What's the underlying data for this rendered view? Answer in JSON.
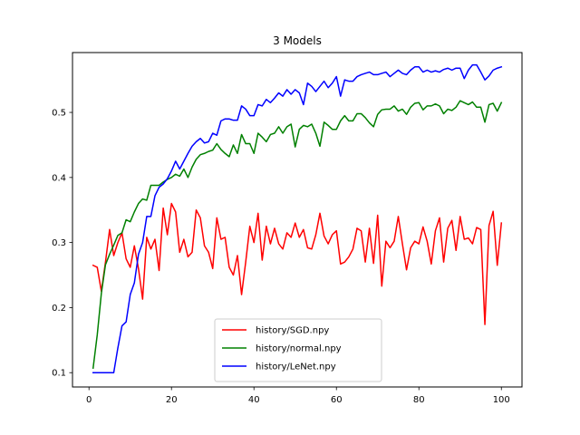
{
  "chart_data": {
    "type": "line",
    "title": "3 Models",
    "xlabel": "",
    "ylabel": "",
    "xlim": [
      -4,
      105
    ],
    "ylim": [
      0.078,
      0.592
    ],
    "xticks": [
      0,
      20,
      40,
      60,
      80,
      100
    ],
    "yticks": [
      0.1,
      0.2,
      0.3,
      0.4,
      0.5
    ],
    "xtick_labels": [
      "0",
      "20",
      "40",
      "60",
      "80",
      "100"
    ],
    "ytick_labels": [
      "0.1",
      "0.2",
      "0.3",
      "0.4",
      "0.5"
    ],
    "grid": false,
    "legend_position": "bottom-center",
    "x": [
      1,
      2,
      3,
      4,
      5,
      6,
      7,
      8,
      9,
      10,
      11,
      12,
      13,
      14,
      15,
      16,
      17,
      18,
      19,
      20,
      21,
      22,
      23,
      24,
      25,
      26,
      27,
      28,
      29,
      30,
      31,
      32,
      33,
      34,
      35,
      36,
      37,
      38,
      39,
      40,
      41,
      42,
      43,
      44,
      45,
      46,
      47,
      48,
      49,
      50,
      51,
      52,
      53,
      54,
      55,
      56,
      57,
      58,
      59,
      60,
      61,
      62,
      63,
      64,
      65,
      66,
      67,
      68,
      69,
      70,
      71,
      72,
      73,
      74,
      75,
      76,
      77,
      78,
      79,
      80,
      81,
      82,
      83,
      84,
      85,
      86,
      87,
      88,
      89,
      90,
      91,
      92,
      93,
      94,
      95,
      96,
      97,
      98,
      99,
      100
    ],
    "series": [
      {
        "name": "history/SGD.npy",
        "color": "#ff0000",
        "values": [
          0.265,
          0.262,
          0.225,
          0.27,
          0.32,
          0.28,
          0.3,
          0.315,
          0.275,
          0.262,
          0.295,
          0.26,
          0.213,
          0.308,
          0.29,
          0.305,
          0.257,
          0.353,
          0.312,
          0.36,
          0.347,
          0.285,
          0.305,
          0.278,
          0.285,
          0.35,
          0.338,
          0.295,
          0.285,
          0.26,
          0.338,
          0.305,
          0.308,
          0.262,
          0.25,
          0.28,
          0.22,
          0.27,
          0.325,
          0.3,
          0.345,
          0.273,
          0.325,
          0.298,
          0.322,
          0.298,
          0.29,
          0.315,
          0.308,
          0.33,
          0.308,
          0.32,
          0.292,
          0.29,
          0.312,
          0.345,
          0.31,
          0.298,
          0.312,
          0.318,
          0.267,
          0.27,
          0.278,
          0.29,
          0.322,
          0.318,
          0.27,
          0.322,
          0.268,
          0.342,
          0.233,
          0.302,
          0.292,
          0.302,
          0.34,
          0.298,
          0.258,
          0.292,
          0.302,
          0.298,
          0.324,
          0.302,
          0.267,
          0.318,
          0.338,
          0.27,
          0.322,
          0.334,
          0.288,
          0.34,
          0.305,
          0.307,
          0.298,
          0.323,
          0.32,
          0.174,
          0.326,
          0.348,
          0.265,
          0.33
        ]
      },
      {
        "name": "history/normal.npy",
        "color": "#008000",
        "values": [
          0.107,
          0.158,
          0.222,
          0.266,
          0.282,
          0.296,
          0.311,
          0.315,
          0.335,
          0.332,
          0.347,
          0.36,
          0.367,
          0.365,
          0.388,
          0.388,
          0.388,
          0.393,
          0.397,
          0.4,
          0.405,
          0.402,
          0.413,
          0.4,
          0.416,
          0.428,
          0.435,
          0.437,
          0.44,
          0.442,
          0.452,
          0.443,
          0.437,
          0.432,
          0.45,
          0.437,
          0.466,
          0.452,
          0.452,
          0.437,
          0.468,
          0.462,
          0.455,
          0.466,
          0.468,
          0.478,
          0.468,
          0.478,
          0.482,
          0.447,
          0.474,
          0.48,
          0.478,
          0.482,
          0.468,
          0.448,
          0.485,
          0.48,
          0.474,
          0.474,
          0.487,
          0.495,
          0.487,
          0.487,
          0.498,
          0.498,
          0.492,
          0.484,
          0.478,
          0.497,
          0.504,
          0.505,
          0.505,
          0.51,
          0.502,
          0.505,
          0.497,
          0.508,
          0.514,
          0.515,
          0.504,
          0.51,
          0.51,
          0.513,
          0.51,
          0.498,
          0.505,
          0.503,
          0.508,
          0.518,
          0.515,
          0.512,
          0.516,
          0.508,
          0.508,
          0.485,
          0.512,
          0.514,
          0.502,
          0.515
        ]
      },
      {
        "name": "history/LeNet.npy",
        "color": "#0000ff",
        "values": [
          0.1,
          0.1,
          0.1,
          0.1,
          0.1,
          0.1,
          0.138,
          0.172,
          0.178,
          0.22,
          0.238,
          0.282,
          0.3,
          0.34,
          0.34,
          0.372,
          0.385,
          0.39,
          0.398,
          0.41,
          0.425,
          0.413,
          0.425,
          0.437,
          0.448,
          0.455,
          0.46,
          0.453,
          0.455,
          0.468,
          0.465,
          0.487,
          0.49,
          0.49,
          0.488,
          0.488,
          0.51,
          0.505,
          0.495,
          0.495,
          0.512,
          0.51,
          0.52,
          0.515,
          0.522,
          0.53,
          0.525,
          0.535,
          0.528,
          0.535,
          0.53,
          0.512,
          0.545,
          0.54,
          0.532,
          0.54,
          0.548,
          0.538,
          0.545,
          0.555,
          0.525,
          0.55,
          0.548,
          0.548,
          0.555,
          0.558,
          0.56,
          0.562,
          0.558,
          0.558,
          0.56,
          0.562,
          0.555,
          0.56,
          0.565,
          0.56,
          0.558,
          0.565,
          0.57,
          0.57,
          0.562,
          0.565,
          0.562,
          0.564,
          0.562,
          0.566,
          0.568,
          0.565,
          0.568,
          0.568,
          0.552,
          0.565,
          0.573,
          0.573,
          0.562,
          0.55,
          0.556,
          0.565,
          0.568,
          0.57
        ]
      }
    ]
  }
}
